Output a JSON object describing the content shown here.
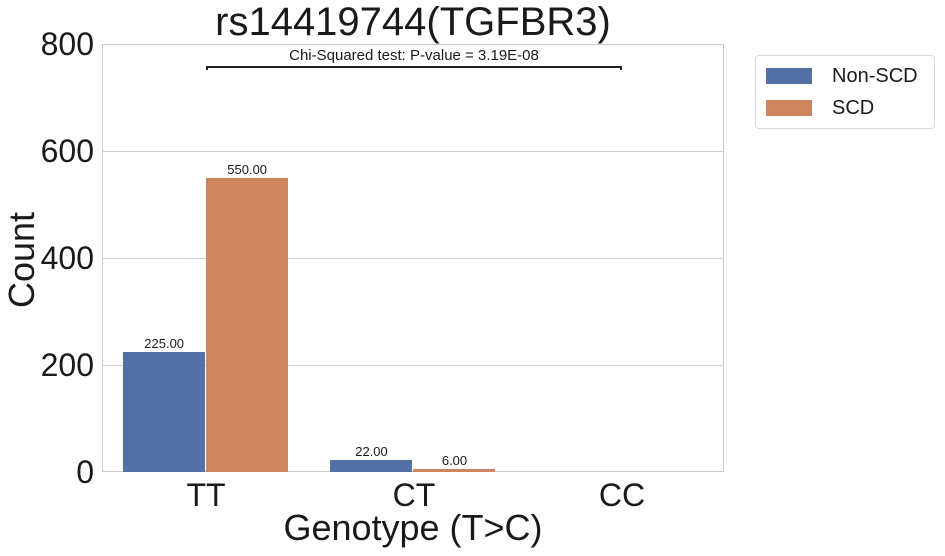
{
  "chart_data": {
    "type": "bar",
    "title": "rs14419744(TGFBR3)",
    "annotation": "Chi-Squared test: P-value = 3.19E-08",
    "xlabel": "Genotype (T>C)",
    "ylabel": "Count",
    "categories": [
      "TT",
      "CT",
      "CC"
    ],
    "series": [
      {
        "name": "Non-SCD",
        "color": "#5471a6",
        "values": [
          225,
          22,
          0
        ],
        "labels": [
          "225.00",
          "22.00",
          ""
        ]
      },
      {
        "name": "SCD",
        "color": "#cf8660",
        "values": [
          550,
          6,
          0
        ],
        "labels": [
          "550.00",
          "6.00",
          ""
        ]
      }
    ],
    "ylim": [
      0,
      800
    ],
    "yticks": [
      "0",
      "200",
      "400",
      "600",
      "800"
    ],
    "grid": true,
    "legend_position": "upper right outside"
  }
}
